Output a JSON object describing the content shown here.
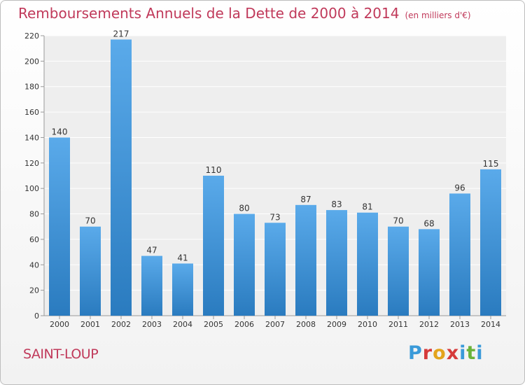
{
  "header": {
    "title": "Remboursements Annuels de la Dette de 2000 à 2014",
    "unit": "(en milliers d'€)"
  },
  "footer": {
    "place": "SAINT-LOUP",
    "logo": "Proxiti"
  },
  "colors": {
    "bar_light": "#5aaaea",
    "bar_dark": "#2a7bbf",
    "title": "#c0395a",
    "logo": [
      "#3a9ad9",
      "#d63a3a",
      "#e3a41c",
      "#d63a3a",
      "#3a9ad9",
      "#6ab33a",
      "#3a9ad9"
    ]
  },
  "chart_data": {
    "type": "bar",
    "title": "Remboursements Annuels de la Dette de 2000 à 2014",
    "xlabel": "",
    "ylabel": "",
    "categories": [
      "2000",
      "2001",
      "2002",
      "2003",
      "2004",
      "2005",
      "2006",
      "2007",
      "2008",
      "2009",
      "2010",
      "2011",
      "2012",
      "2013",
      "2014"
    ],
    "values": [
      140,
      70,
      217,
      47,
      41,
      110,
      80,
      73,
      87,
      83,
      81,
      70,
      68,
      96,
      115
    ],
    "ylim": [
      0,
      220
    ],
    "yticks": [
      0,
      20,
      40,
      60,
      80,
      100,
      120,
      140,
      160,
      180,
      200,
      220
    ],
    "grid": true
  }
}
